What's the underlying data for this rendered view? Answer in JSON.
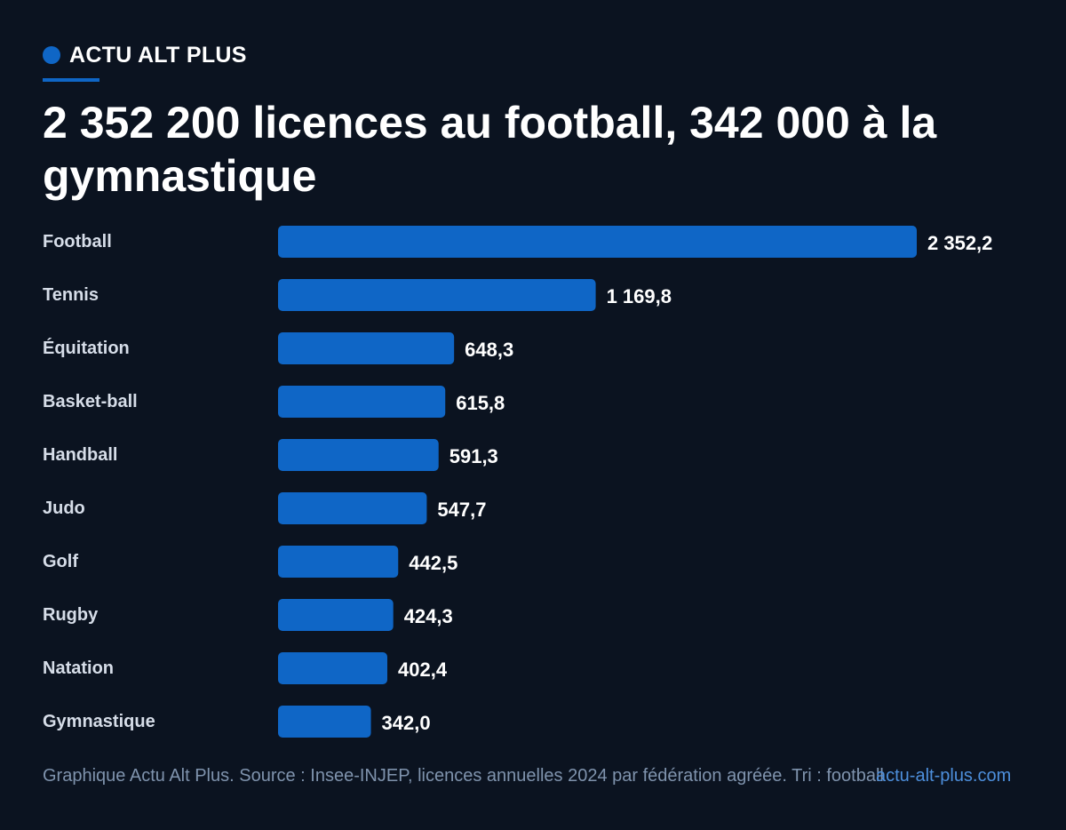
{
  "brand": {
    "name": "ACTU ALT PLUS",
    "accent_color": "#0f66c6"
  },
  "headline": "2 352 200 licences au football, 342 000 à la gymnastique",
  "footer": {
    "source_text": "Graphique Actu Alt Plus. Source : Insee-INJEP, licences annuelles 2024 par fédération agréée. Tri : football",
    "site": "actu-alt-plus.com"
  },
  "chart_data": {
    "type": "bar",
    "orientation": "horizontal",
    "categories": [
      "Football",
      "Tennis",
      "Équitation",
      "Basket-ball",
      "Handball",
      "Judo",
      "Golf",
      "Rugby",
      "Natation",
      "Gymnastique"
    ],
    "values": [
      2352.2,
      1169.8,
      648.3,
      615.8,
      591.3,
      547.7,
      442.5,
      424.3,
      402.4,
      342.0
    ],
    "value_labels": [
      "2 352,2",
      "1 169,8",
      "648,3",
      "615,8",
      "591,3",
      "547,7",
      "442,5",
      "424,3",
      "402,4",
      "342,0"
    ],
    "bar_color": "#0f66c6",
    "grid": false,
    "legend": "none"
  }
}
